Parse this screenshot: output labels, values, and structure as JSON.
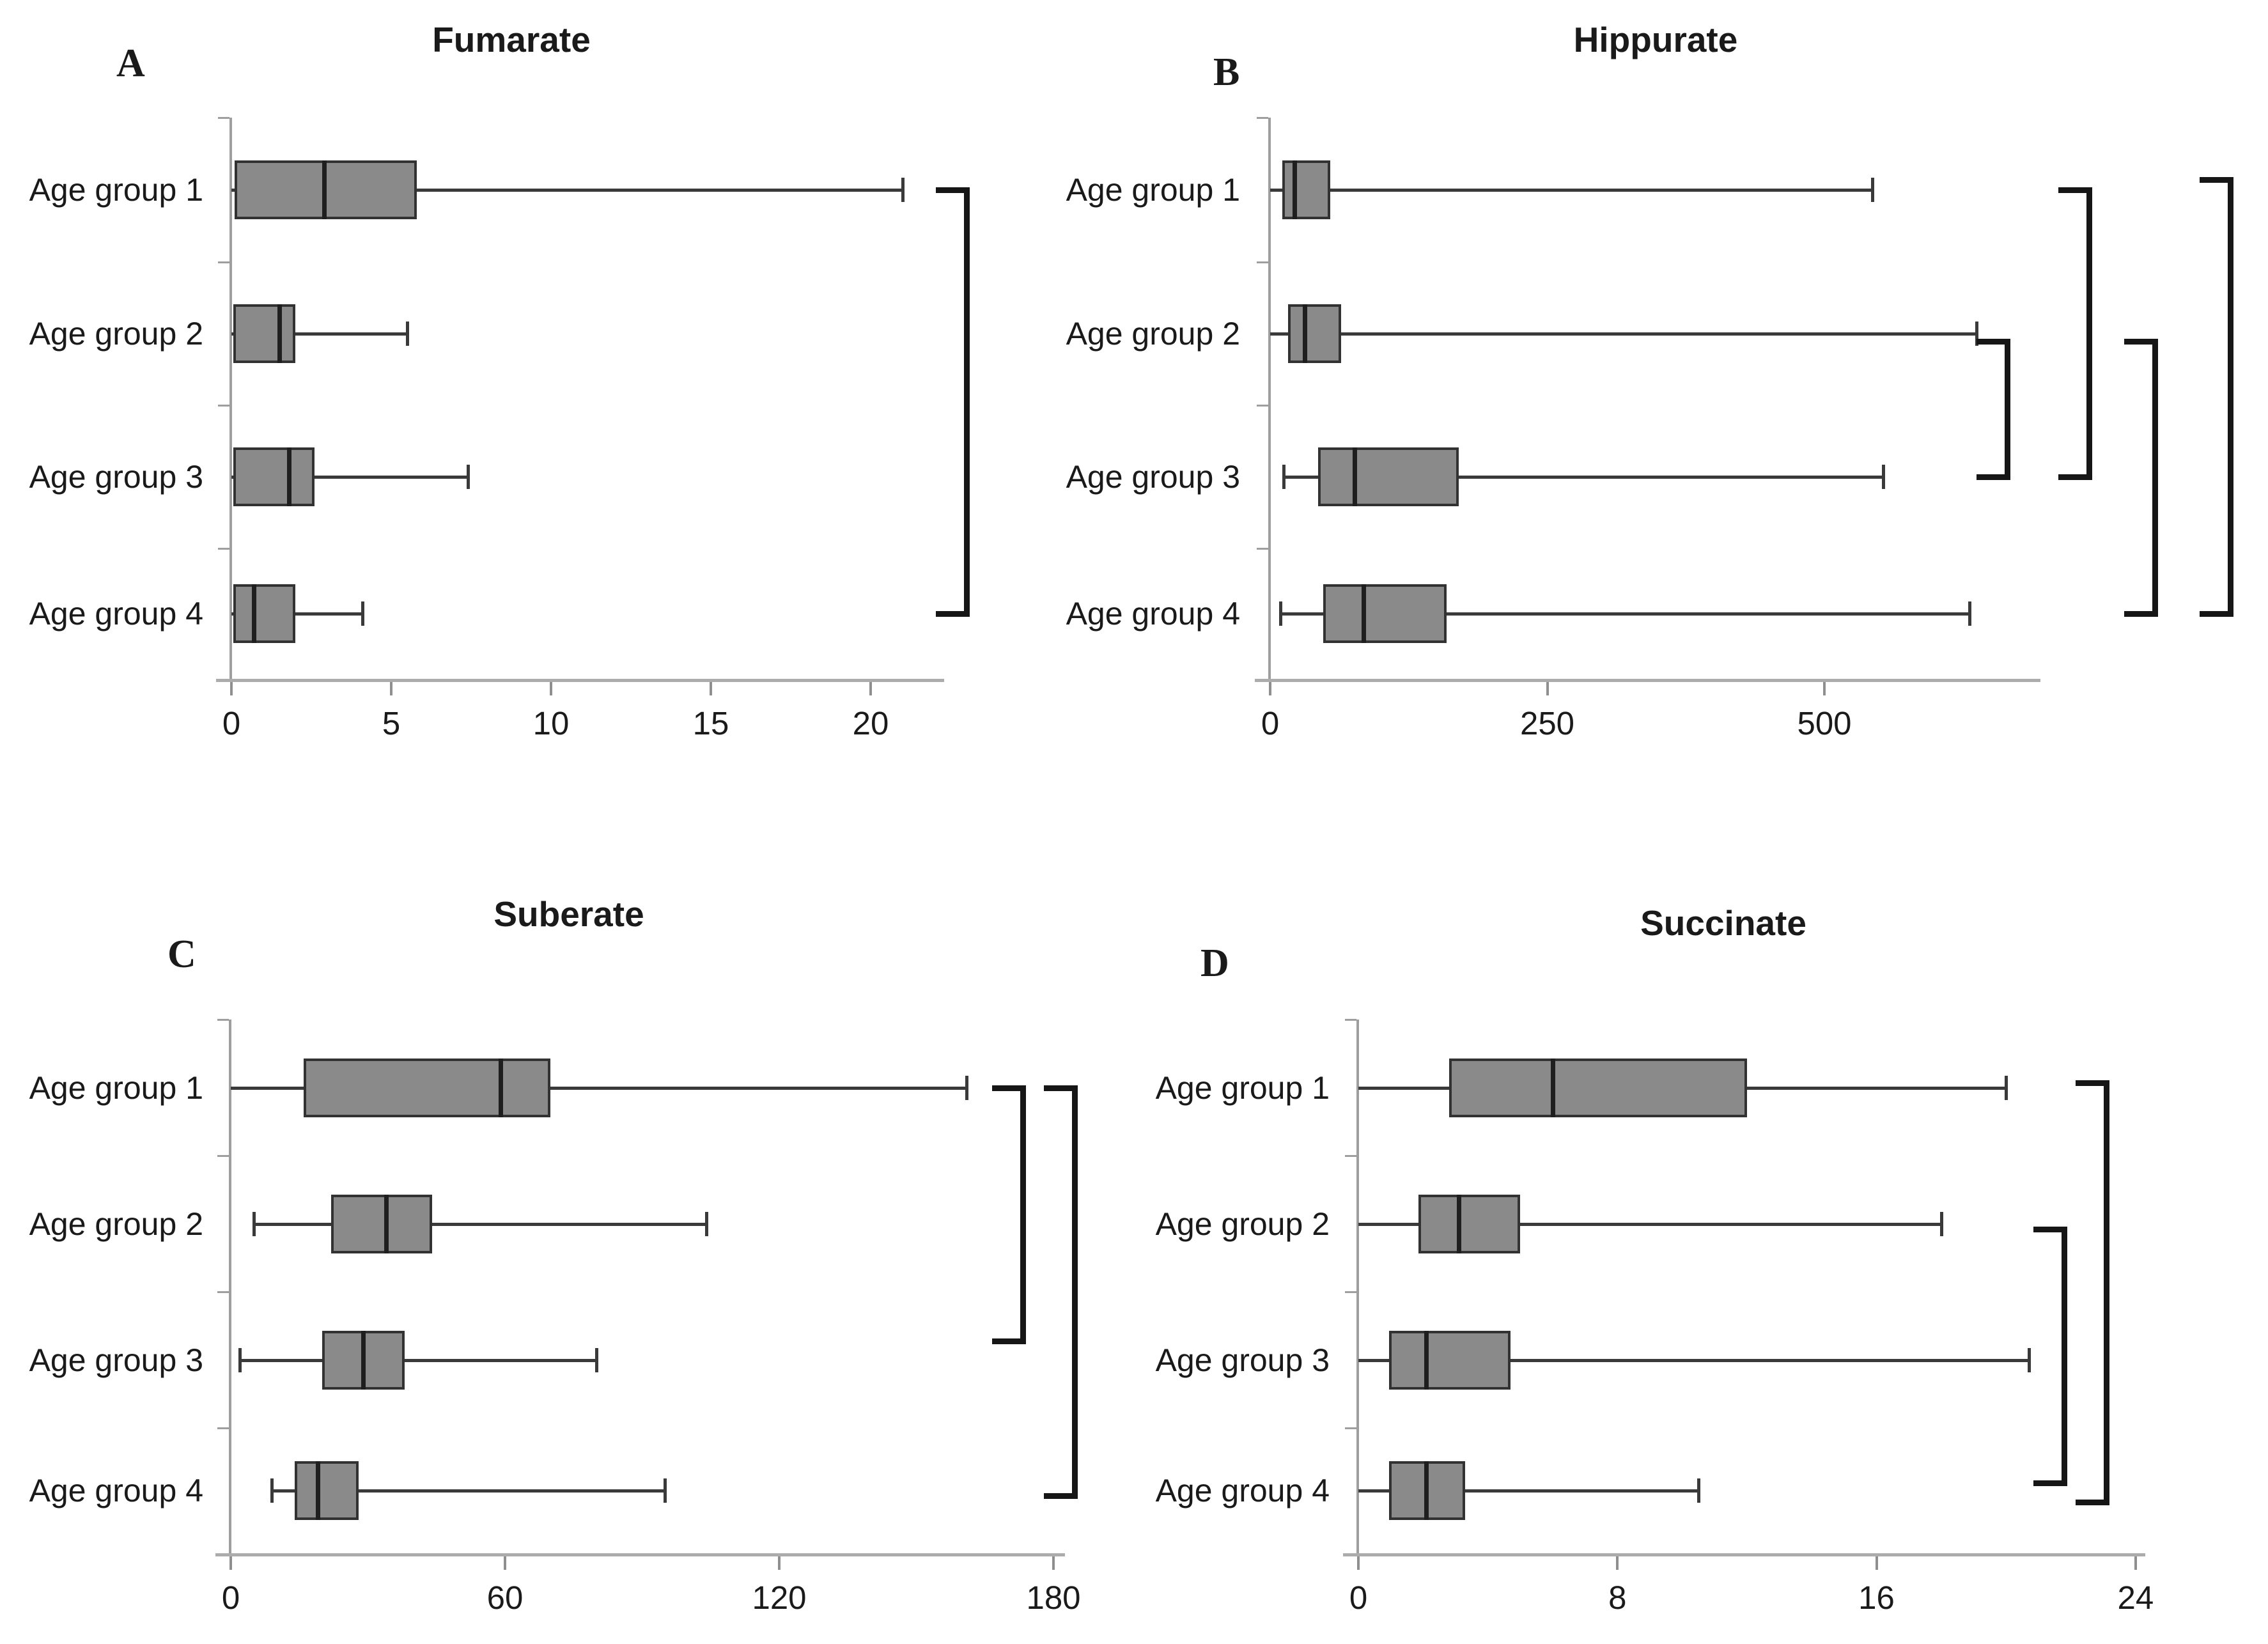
{
  "figure_type": "four-panel horizontal boxplot figure",
  "colors": {
    "background": "#ffffff",
    "box_fill": "#8a8a8a",
    "box_border": "#323232",
    "whisker_line": "#3a3a3a",
    "median_line": "#1f1f1f",
    "bracket": "#161616",
    "axis_line": "#acacac",
    "axis_minor": "#9e9e9e",
    "tick_mark": "#8f8f8f",
    "text": "#1a1a1a"
  },
  "chart_data": [
    {
      "id": "A",
      "type": "box",
      "orientation": "horizontal",
      "panel_label": "A",
      "title": "Fumarate",
      "categories": [
        "Age group 1",
        "Age group 2",
        "Age group 3",
        "Age group 4"
      ],
      "series": [
        {
          "category": "Age group 1",
          "min": 0,
          "q1": 0.1,
          "median": 2.9,
          "q3": 5.8,
          "max": 21.0
        },
        {
          "category": "Age group 2",
          "min": 0,
          "q1": 0.05,
          "median": 1.5,
          "q3": 2.0,
          "max": 5.5
        },
        {
          "category": "Age group 3",
          "min": 0,
          "q1": 0.05,
          "median": 1.8,
          "q3": 2.6,
          "max": 7.4
        },
        {
          "category": "Age group 4",
          "min": 0,
          "q1": 0.05,
          "median": 0.7,
          "q3": 2.0,
          "max": 4.1
        }
      ],
      "xlim": [
        0,
        22.3
      ],
      "xticks": [
        0,
        5,
        10,
        15,
        20
      ],
      "grid": false,
      "legend": false,
      "significance_brackets": [
        {
          "between": [
            "Age group 1",
            "Age group 4"
          ],
          "x": 23.0
        }
      ]
    },
    {
      "id": "B",
      "type": "box",
      "orientation": "horizontal",
      "panel_label": "B",
      "title": "Hippurate",
      "categories": [
        "Age group 1",
        "Age group 2",
        "Age group 3",
        "Age group 4"
      ],
      "series": [
        {
          "category": "Age group 1",
          "min": 0,
          "q1": 11,
          "median": 22,
          "q3": 54,
          "max": 543
        },
        {
          "category": "Age group 2",
          "min": 0,
          "q1": 16,
          "median": 31,
          "q3": 64,
          "max": 637
        },
        {
          "category": "Age group 3",
          "min": 12,
          "q1": 43,
          "median": 76,
          "q3": 170,
          "max": 553
        },
        {
          "category": "Age group 4",
          "min": 9,
          "q1": 48,
          "median": 84,
          "q3": 159,
          "max": 631
        }
      ],
      "xlim": [
        0,
        695
      ],
      "xticks": [
        0,
        250,
        500
      ],
      "grid": false,
      "legend": false,
      "significance_brackets": [
        {
          "between": [
            "Age group 2",
            "Age group 3"
          ],
          "x": 665
        },
        {
          "between": [
            "Age group 1",
            "Age group 3"
          ],
          "x": 739
        },
        {
          "between": [
            "Age group 2",
            "Age group 4"
          ],
          "x": 798
        },
        {
          "between": [
            "Age group 1",
            "Age group 4"
          ],
          "x": 866
        }
      ]
    },
    {
      "id": "C",
      "type": "box",
      "orientation": "horizontal",
      "panel_label": "C",
      "title": "Suberate",
      "categories": [
        "Age group 1",
        "Age group 2",
        "Age group 3",
        "Age group 4"
      ],
      "series": [
        {
          "category": "Age group 1",
          "min": 0,
          "q1": 16,
          "median": 59,
          "q3": 70,
          "max": 161
        },
        {
          "category": "Age group 2",
          "min": 5,
          "q1": 22,
          "median": 34,
          "q3": 44,
          "max": 104
        },
        {
          "category": "Age group 3",
          "min": 2,
          "q1": 20,
          "median": 29,
          "q3": 38,
          "max": 80
        },
        {
          "category": "Age group 4",
          "min": 9,
          "q1": 14,
          "median": 19,
          "q3": 28,
          "max": 95
        }
      ],
      "xlim": [
        0,
        182.5
      ],
      "xticks": [
        0,
        60,
        120,
        180
      ],
      "grid": false,
      "legend": false,
      "significance_brackets": [
        {
          "between": [
            "Age group 1",
            "Age group 3"
          ],
          "x": 173.3
        },
        {
          "between": [
            "Age group 1",
            "Age group 4"
          ],
          "x": 184.6
        }
      ]
    },
    {
      "id": "D",
      "type": "box",
      "orientation": "horizontal",
      "panel_label": "D",
      "title": "Succinate",
      "categories": [
        "Age group 1",
        "Age group 2",
        "Age group 3",
        "Age group 4"
      ],
      "series": [
        {
          "category": "Age group 1",
          "min": 0,
          "q1": 2.8,
          "median": 6.0,
          "q3": 12.0,
          "max": 20.0
        },
        {
          "category": "Age group 2",
          "min": 0,
          "q1": 1.85,
          "median": 3.1,
          "q3": 5.0,
          "max": 18.0
        },
        {
          "category": "Age group 3",
          "min": 0,
          "q1": 0.95,
          "median": 2.1,
          "q3": 4.7,
          "max": 20.7
        },
        {
          "category": "Age group 4",
          "min": 0,
          "q1": 0.95,
          "median": 2.1,
          "q3": 3.3,
          "max": 10.5
        }
      ],
      "xlim": [
        0,
        24.3
      ],
      "xticks": [
        0,
        8,
        16,
        24
      ],
      "grid": false,
      "legend": false,
      "significance_brackets": [
        {
          "between": [
            "Age group 2",
            "Age group 4"
          ],
          "x": 21.8
        },
        {
          "between": [
            "Age group 1",
            "Age group 4"
          ],
          "x": 23.1
        }
      ]
    }
  ]
}
